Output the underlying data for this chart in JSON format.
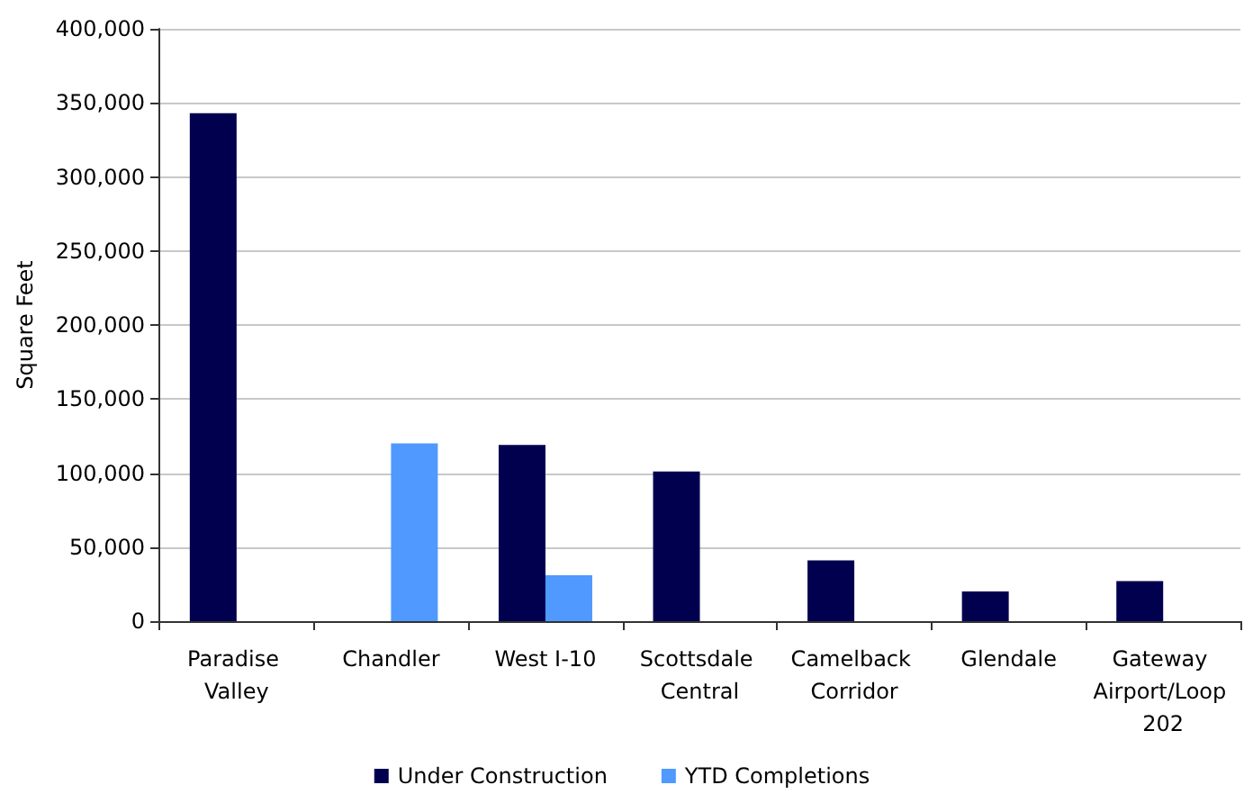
{
  "chart_data": {
    "type": "bar",
    "ylabel": "Square Feet",
    "categories": [
      "Paradise Valley",
      "Chandler",
      "West I-10",
      "Scottsdale Central",
      "Camelback Corridor",
      "Glendale",
      "Gateway Airport/Loop 202"
    ],
    "series": [
      {
        "name": "Under Construction",
        "color": "#00004f",
        "values": [
          343000,
          null,
          119000,
          101000,
          41000,
          20000,
          27000
        ]
      },
      {
        "name": "YTD Completions",
        "color": "#4f99ff",
        "values": [
          null,
          120000,
          31000,
          null,
          null,
          null,
          null
        ]
      }
    ],
    "ylim": [
      0,
      400000
    ],
    "yticks": [
      0,
      {
        "value": 50000,
        "label": "50,000"
      },
      {
        "value": 100000,
        "label": "100,000"
      },
      {
        "value": 150000,
        "label": "150,000"
      },
      {
        "value": 200000,
        "label": "200,000"
      },
      {
        "value": 250000,
        "label": "250,000"
      },
      {
        "value": 300000,
        "label": "300,000"
      },
      {
        "value": 350000,
        "label": "350,000"
      },
      {
        "value": 400000,
        "label": "400,000"
      }
    ],
    "grid": "y",
    "legend": "bottom"
  }
}
